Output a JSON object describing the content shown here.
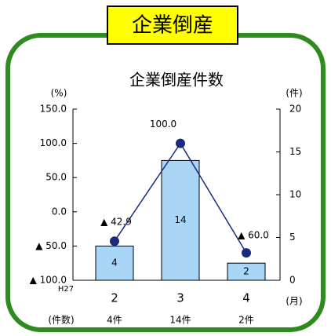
{
  "badge": "企業倒産",
  "chart_data": {
    "type": "combo",
    "title": "企業倒産件数",
    "y_label": "(%)",
    "y2_label": "(件)",
    "x_label": "(月)",
    "annotation": "H27",
    "categories": [
      "2",
      "3",
      "4"
    ],
    "ylim": [
      -100,
      150
    ],
    "yticks": [
      {
        "value": -100,
        "label": "▲ 100.0"
      },
      {
        "value": -50,
        "label": "▲ 50.0"
      },
      {
        "value": 0,
        "label": "0.0"
      },
      {
        "value": 50,
        "label": "50.0"
      },
      {
        "value": 100,
        "label": "100.0"
      },
      {
        "value": 150,
        "label": "150.0"
      }
    ],
    "y2lim": [
      0,
      20
    ],
    "y2ticks": [
      0,
      5,
      10,
      15,
      20
    ],
    "series": [
      {
        "type": "bar",
        "axis": "y2",
        "color": "#a9d5f7",
        "values": [
          4,
          14,
          2
        ]
      },
      {
        "type": "line",
        "color": "#1a2a80",
        "values": [
          -42.9,
          100,
          -60
        ],
        "value_labels": [
          "▲ 42.9",
          "100.0",
          "▲ 60.0"
        ]
      }
    ],
    "counts_row": {
      "label": "(件数)",
      "values": [
        "4件",
        "14件",
        "2件"
      ]
    }
  }
}
